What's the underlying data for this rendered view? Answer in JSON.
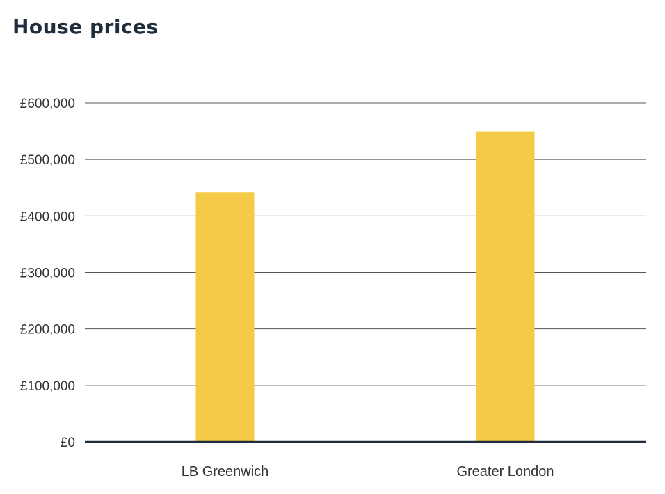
{
  "chart_data": {
    "type": "bar",
    "title": "House prices",
    "categories": [
      "LB Greenwich",
      "Greater London"
    ],
    "values": [
      442000,
      550000
    ],
    "ylim": [
      0,
      600000
    ],
    "yticks": [
      0,
      100000,
      200000,
      300000,
      400000,
      500000,
      600000
    ],
    "ytick_labels": [
      "£0",
      "£100,000",
      "£200,000",
      "£300,000",
      "£400,000",
      "£500,000",
      "£600,000"
    ],
    "grid": true,
    "legend": "none",
    "colors": {
      "bar": "#f4ca47",
      "grid": "#555555",
      "baseline": "#1f2d3d",
      "title": "#1f2d3d",
      "text": "#333333"
    }
  }
}
